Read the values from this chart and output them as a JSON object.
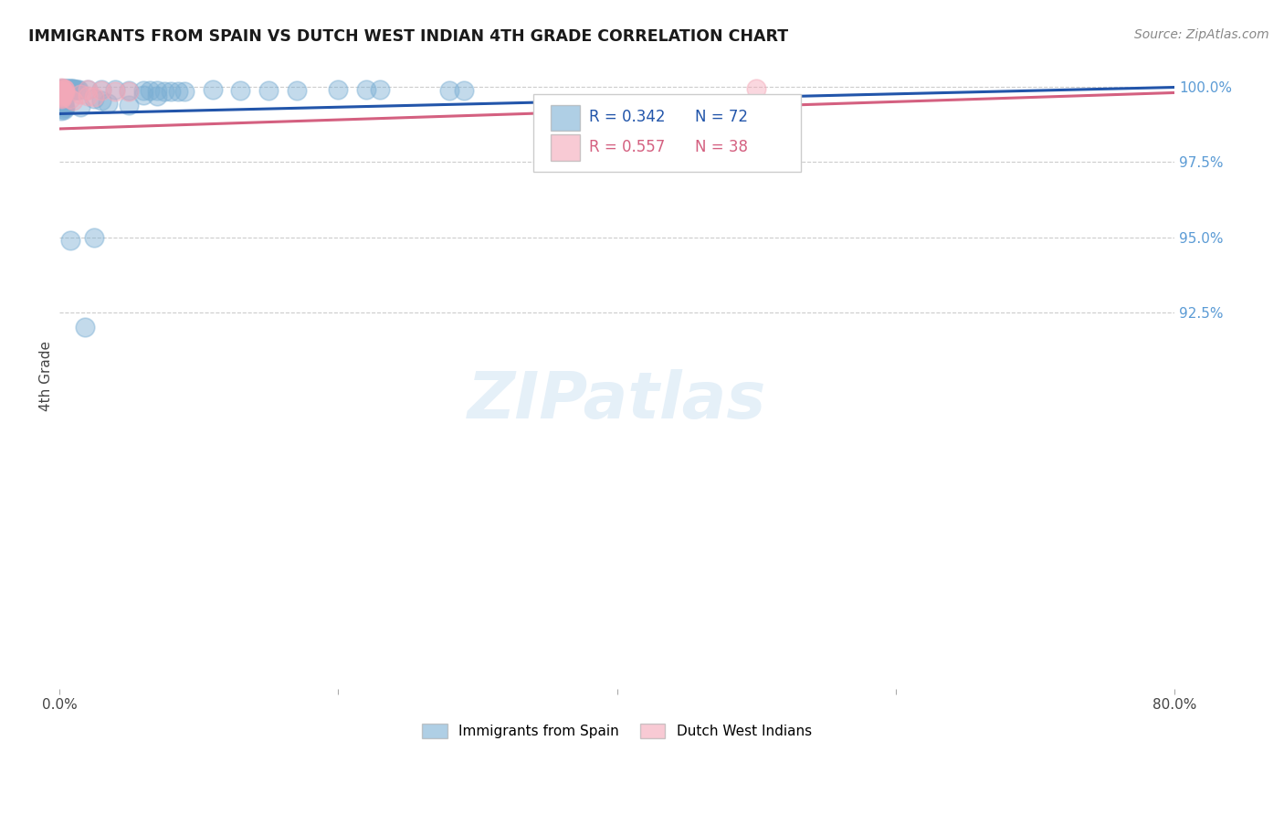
{
  "title": "IMMIGRANTS FROM SPAIN VS DUTCH WEST INDIAN 4TH GRADE CORRELATION CHART",
  "source": "Source: ZipAtlas.com",
  "ylabel": "4th Grade",
  "ylabel_right_ticks": [
    "100.0%",
    "97.5%",
    "95.0%",
    "92.5%"
  ],
  "ylabel_right_values": [
    1.0,
    0.975,
    0.95,
    0.925
  ],
  "xlim": [
    0.0,
    0.8
  ],
  "ylim": [
    0.8,
    1.008
  ],
  "legend_blue_r": "R = 0.342",
  "legend_blue_n": "N = 72",
  "legend_pink_r": "R = 0.557",
  "legend_pink_n": "N = 38",
  "legend_label_blue": "Immigrants from Spain",
  "legend_label_pink": "Dutch West Indians",
  "blue_color": "#7bafd4",
  "pink_color": "#f4a8b8",
  "trendline_blue_color": "#2255aa",
  "trendline_pink_color": "#d46080",
  "blue_scatter": [
    [
      0.001,
      0.9995
    ],
    [
      0.002,
      0.9995
    ],
    [
      0.003,
      0.9995
    ],
    [
      0.004,
      0.9995
    ],
    [
      0.005,
      0.9995
    ],
    [
      0.006,
      0.9995
    ],
    [
      0.007,
      0.9995
    ],
    [
      0.008,
      0.9995
    ],
    [
      0.009,
      0.9993
    ],
    [
      0.01,
      0.9993
    ],
    [
      0.011,
      0.9991
    ],
    [
      0.012,
      0.9991
    ],
    [
      0.002,
      0.999
    ],
    [
      0.013,
      0.999
    ],
    [
      0.014,
      0.999
    ],
    [
      0.003,
      0.9988
    ],
    [
      0.004,
      0.9988
    ],
    [
      0.005,
      0.9985
    ],
    [
      0.006,
      0.9985
    ],
    [
      0.001,
      0.9978
    ],
    [
      0.002,
      0.9978
    ],
    [
      0.003,
      0.9976
    ],
    [
      0.004,
      0.9974
    ],
    [
      0.001,
      0.9968
    ],
    [
      0.002,
      0.9967
    ],
    [
      0.003,
      0.9965
    ],
    [
      0.001,
      0.996
    ],
    [
      0.002,
      0.9958
    ],
    [
      0.001,
      0.9952
    ],
    [
      0.002,
      0.995
    ],
    [
      0.003,
      0.995
    ],
    [
      0.001,
      0.9945
    ],
    [
      0.002,
      0.9943
    ],
    [
      0.003,
      0.9941
    ],
    [
      0.001,
      0.9938
    ],
    [
      0.002,
      0.9936
    ],
    [
      0.003,
      0.9932
    ],
    [
      0.004,
      0.993
    ],
    [
      0.002,
      0.9927
    ],
    [
      0.003,
      0.9924
    ],
    [
      0.001,
      0.992
    ],
    [
      0.02,
      0.9992
    ],
    [
      0.03,
      0.999
    ],
    [
      0.04,
      0.999
    ],
    [
      0.05,
      0.9988
    ],
    [
      0.06,
      0.9987
    ],
    [
      0.065,
      0.9986
    ],
    [
      0.07,
      0.9986
    ],
    [
      0.075,
      0.9985
    ],
    [
      0.08,
      0.9985
    ],
    [
      0.085,
      0.9985
    ],
    [
      0.09,
      0.9985
    ],
    [
      0.11,
      0.999
    ],
    [
      0.13,
      0.9988
    ],
    [
      0.15,
      0.9988
    ],
    [
      0.17,
      0.9988
    ],
    [
      0.2,
      0.9992
    ],
    [
      0.22,
      0.9992
    ],
    [
      0.23,
      0.9992
    ],
    [
      0.28,
      0.9988
    ],
    [
      0.29,
      0.9988
    ],
    [
      0.06,
      0.9972
    ],
    [
      0.07,
      0.9968
    ],
    [
      0.025,
      0.996
    ],
    [
      0.03,
      0.9955
    ],
    [
      0.035,
      0.9945
    ],
    [
      0.05,
      0.994
    ],
    [
      0.015,
      0.9932
    ],
    [
      0.025,
      0.95
    ],
    [
      0.008,
      0.949
    ],
    [
      0.018,
      0.92
    ]
  ],
  "pink_scatter": [
    [
      0.001,
      0.9996
    ],
    [
      0.002,
      0.9994
    ],
    [
      0.003,
      0.9993
    ],
    [
      0.004,
      0.9991
    ],
    [
      0.001,
      0.9988
    ],
    [
      0.002,
      0.9986
    ],
    [
      0.003,
      0.9984
    ],
    [
      0.004,
      0.9982
    ],
    [
      0.001,
      0.9978
    ],
    [
      0.002,
      0.9976
    ],
    [
      0.001,
      0.9972
    ],
    [
      0.002,
      0.997
    ],
    [
      0.001,
      0.9966
    ],
    [
      0.002,
      0.9964
    ],
    [
      0.001,
      0.996
    ],
    [
      0.02,
      0.999
    ],
    [
      0.03,
      0.9988
    ],
    [
      0.04,
      0.9985
    ],
    [
      0.05,
      0.9985
    ],
    [
      0.015,
      0.9975
    ],
    [
      0.02,
      0.997
    ],
    [
      0.025,
      0.9965
    ],
    [
      0.008,
      0.996
    ],
    [
      0.01,
      0.9955
    ],
    [
      0.5,
      0.9993
    ]
  ],
  "blue_trendline_x": [
    0.0,
    0.8
  ],
  "blue_trendline_y": [
    0.991,
    0.9998
  ],
  "pink_trendline_x": [
    0.0,
    0.8
  ],
  "pink_trendline_y": [
    0.986,
    0.998
  ]
}
